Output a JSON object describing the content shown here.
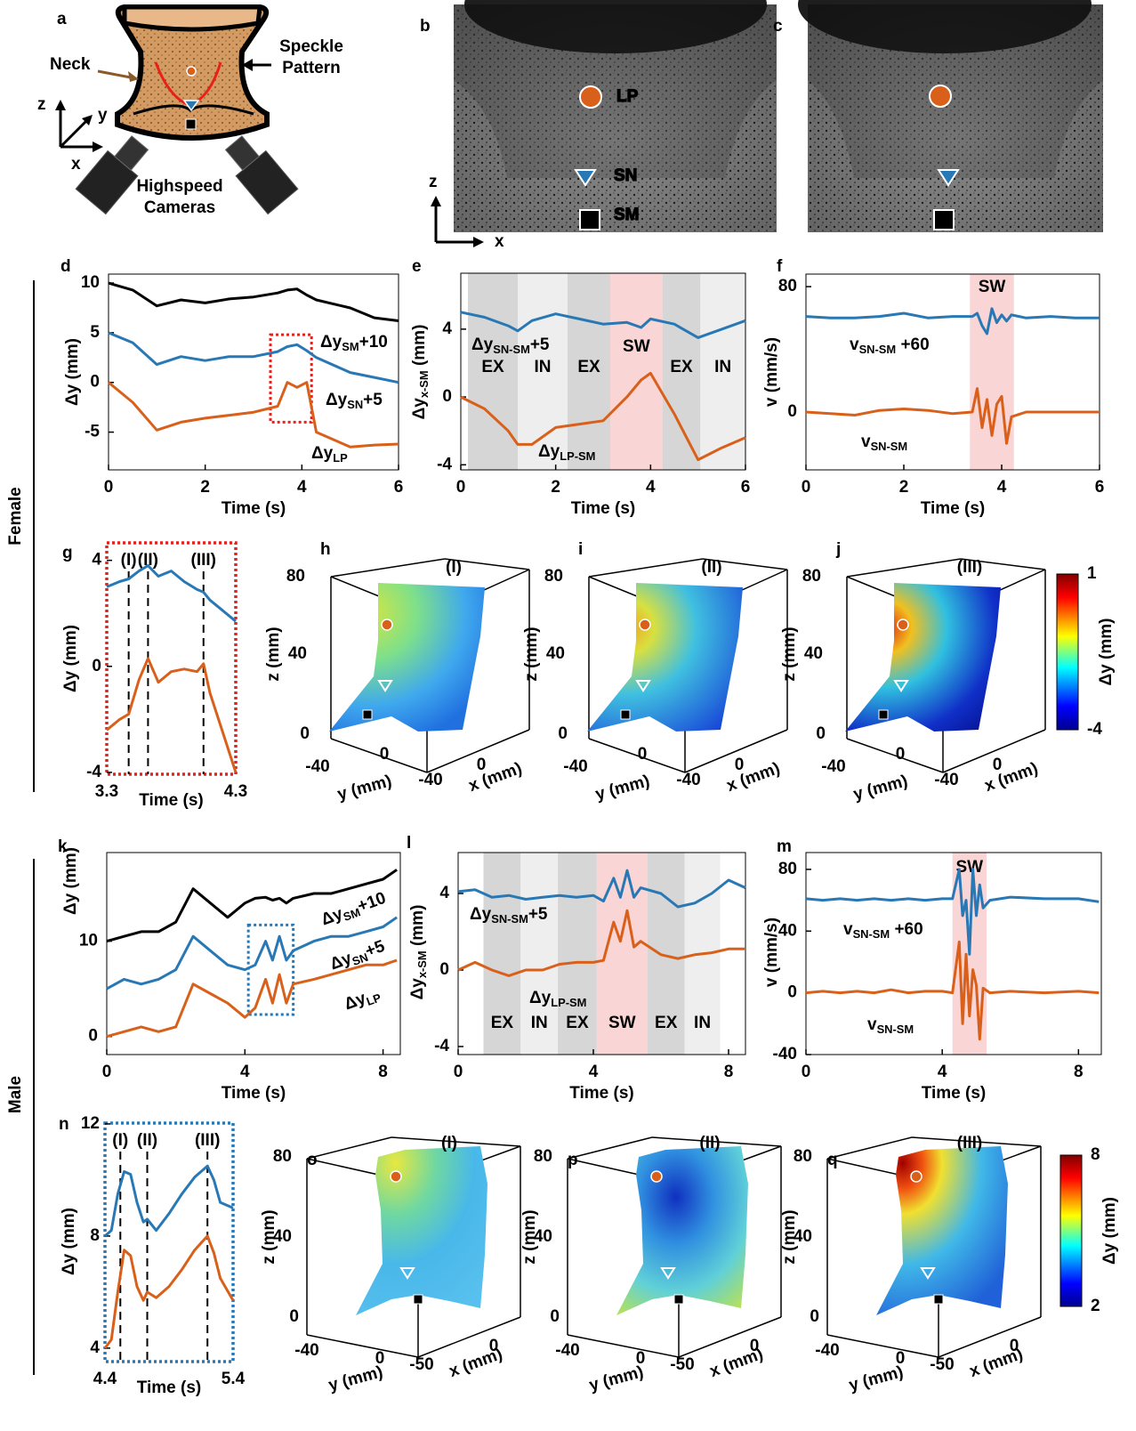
{
  "chart_data": [
    {
      "type": "line",
      "panel": "d",
      "x": [
        0,
        0.5,
        1,
        1.5,
        2,
        2.5,
        3,
        3.5,
        3.7,
        3.9,
        4.1,
        4.3,
        5,
        5.5,
        6
      ],
      "xlim": [
        0,
        6
      ],
      "xticks": [
        0,
        2,
        4,
        6
      ],
      "ylim": [
        -8.8,
        10.9
      ],
      "yticks": [
        -5,
        0,
        5,
        10
      ],
      "xlabel": "Time (s)",
      "ylabel": [
        "Δy (mm)"
      ],
      "series": [
        {
          "name": [
            "Δy",
            "SM",
            "+10"
          ],
          "color": "#000000",
          "values": [
            10,
            9.3,
            7.7,
            8.3,
            8.0,
            8.4,
            8.6,
            9.0,
            9.3,
            9.4,
            8.8,
            8.3,
            7.5,
            6.5,
            6.2
          ]
        },
        {
          "name": [
            "Δy",
            "SN",
            "+5"
          ],
          "color": "#2878b5",
          "values": [
            5,
            4,
            1.8,
            2.6,
            2.2,
            2.6,
            2.6,
            3.1,
            3.6,
            3.8,
            3.2,
            2.5,
            1,
            0.5,
            0
          ]
        },
        {
          "name": [
            "Δy",
            "LP"
          ],
          "color": "#d9601a",
          "values": [
            0,
            -2,
            -4.8,
            -4,
            -3.6,
            -3.3,
            -3,
            -2.4,
            0,
            -0.5,
            0,
            -5,
            -6.5,
            -6.3,
            -6.2
          ]
        }
      ],
      "highlight_box": {
        "x": [
          3.35,
          4.2
        ],
        "y": [
          -4,
          4.8
        ],
        "color": "#e8201c"
      }
    },
    {
      "type": "line",
      "panel": "e",
      "x": [
        0,
        0.5,
        1,
        1.2,
        1.5,
        2,
        2.5,
        3,
        3.5,
        3.8,
        4,
        4.5,
        5,
        5.5,
        6
      ],
      "xlim": [
        0,
        6
      ],
      "xticks": [
        0,
        2,
        4,
        6
      ],
      "ylim": [
        -4.3,
        7.3
      ],
      "yticks": [
        -4,
        0,
        4
      ],
      "xlabel": "Time (s)",
      "ylabel": [
        "Δy",
        "x-SM",
        " (mm)"
      ],
      "bands": [
        {
          "label": "EX",
          "x": [
            0.15,
            1.2
          ],
          "color": "#d6d6d6",
          "label_color": "#000000"
        },
        {
          "label": "IN",
          "x": [
            1.2,
            2.25
          ],
          "color": "#eeeeee",
          "label_color": "#000000"
        },
        {
          "label": "EX",
          "x": [
            2.25,
            3.15
          ],
          "color": "#d6d6d6",
          "label_color": "#000000"
        },
        {
          "label": "SW",
          "x": [
            3.15,
            4.25
          ],
          "color": "#f9d5d5",
          "label_color": "#e8201c"
        },
        {
          "label": "EX",
          "x": [
            4.25,
            5.05
          ],
          "color": "#d6d6d6",
          "label_color": "#000000"
        },
        {
          "label": "IN",
          "x": [
            5.05,
            6
          ],
          "color": "#eeeeee",
          "label_color": "#000000"
        }
      ],
      "series": [
        {
          "name": [
            "Δy",
            "SN-SM",
            "+5"
          ],
          "color": "#2878b5",
          "values": [
            5,
            4.7,
            4.2,
            3.9,
            4.5,
            4.9,
            4.6,
            4.3,
            4.4,
            4.1,
            4.6,
            4.3,
            3.5,
            4.0,
            4.5
          ]
        },
        {
          "name": [
            "Δy",
            "LP-SM"
          ],
          "color": "#d9601a",
          "values": [
            0,
            -0.7,
            -2,
            -2.8,
            -2.8,
            -1.8,
            -1.6,
            -1.4,
            0,
            1.0,
            1.4,
            -1,
            -3.7,
            -3.0,
            -2.4
          ]
        }
      ]
    },
    {
      "type": "line",
      "panel": "f",
      "x": [
        0,
        0.5,
        1,
        1.5,
        2,
        2.5,
        3,
        3.4,
        3.5,
        3.6,
        3.7,
        3.8,
        3.9,
        4,
        4.1,
        4.2,
        4.5,
        5,
        5.5,
        6
      ],
      "xlim": [
        0,
        6
      ],
      "xticks": [
        0,
        2,
        4,
        6
      ],
      "ylim": [
        -36.9,
        88
      ],
      "yticks": [
        0,
        80
      ],
      "xlabel": "Time (s)",
      "ylabel": [
        "v (mm/s)"
      ],
      "bands": [
        {
          "label": "SW",
          "x": [
            3.35,
            4.25
          ],
          "color": "#f9d5d5",
          "label_color": "#e8201c"
        }
      ],
      "series": [
        {
          "name": [
            "v",
            "SN-SM",
            " +60"
          ],
          "color": "#2878b5",
          "values": [
            61,
            60,
            60,
            61,
            63,
            60,
            61,
            61,
            63,
            55,
            50,
            66,
            57,
            62,
            58,
            62,
            60,
            61,
            60,
            60
          ]
        },
        {
          "name": [
            "v",
            "SN-SM"
          ],
          "color": "#d9601a",
          "values": [
            0,
            -1,
            -2,
            1,
            2,
            1,
            -1,
            0,
            15,
            -10,
            8,
            -15,
            5,
            10,
            -20,
            -3,
            0,
            0,
            0,
            0
          ]
        }
      ]
    },
    {
      "type": "line",
      "panel": "g",
      "x": [
        3.3,
        3.35,
        3.4,
        3.47,
        3.55,
        3.62,
        3.7,
        3.8,
        3.9,
        4,
        4.05,
        4.1,
        4.2,
        4.3
      ],
      "xlim": [
        3.3,
        4.3
      ],
      "xticks": [
        3.3,
        4.3
      ],
      "ylim": [
        -4.07,
        4.66
      ],
      "yticks": [
        -4,
        0,
        4
      ],
      "xlabel": "Time (s)",
      "ylabel": [
        "Δy (mm)"
      ],
      "frame": {
        "color": "#e8201c",
        "style": "dotted"
      },
      "markers": [
        {
          "x": 3.47,
          "label": "(I)"
        },
        {
          "x": 3.62,
          "label": "(II)"
        },
        {
          "x": 4.05,
          "label": "(III)"
        }
      ],
      "series": [
        {
          "color": "#2878b5",
          "values": [
            3,
            3.1,
            3.2,
            3.3,
            3.6,
            3.8,
            3.4,
            3.6,
            3.2,
            2.9,
            2.8,
            2.5,
            2.1,
            1.7
          ]
        },
        {
          "color": "#d9601a",
          "values": [
            -2.4,
            -2.2,
            -2,
            -1.8,
            -0.5,
            0.3,
            -0.6,
            -0.2,
            -0.1,
            -0.2,
            0.1,
            -1,
            -2.5,
            -4
          ]
        }
      ]
    },
    {
      "type": "line",
      "panel": "k",
      "x": [
        0,
        0.5,
        1,
        1.5,
        2,
        2.5,
        3,
        3.5,
        4,
        4.3,
        4.6,
        4.8,
        5,
        5.2,
        5.4,
        6,
        6.5,
        7,
        7.5,
        8,
        8.4
      ],
      "xlim": [
        0,
        8.5
      ],
      "xticks": [
        0,
        4,
        8
      ],
      "ylim": [
        -1.9,
        19.3
      ],
      "yticks": [
        0,
        10
      ],
      "xlabel": "Time (s)",
      "ylabel": [
        "Δy (mm)"
      ],
      "series": [
        {
          "name": [
            "Δy",
            "SM",
            "+10"
          ],
          "color": "#000000",
          "values": [
            10,
            10.5,
            11,
            11,
            12,
            15.5,
            14,
            12.5,
            14,
            14.5,
            14.6,
            14.3,
            14.5,
            14,
            14.5,
            15,
            15,
            15.5,
            16,
            16.5,
            17.5
          ]
        },
        {
          "name": [
            "Δy",
            "SN",
            "+5"
          ],
          "color": "#2878b5",
          "values": [
            5,
            6,
            5.5,
            6,
            7,
            10.5,
            9,
            7.5,
            7,
            7.5,
            10,
            8,
            10.5,
            8,
            9,
            10,
            10.5,
            10.5,
            11,
            11.5,
            12.5
          ]
        },
        {
          "name": [
            "Δy",
            "LP"
          ],
          "color": "#d9601a",
          "values": [
            0,
            0.5,
            1,
            0.5,
            1,
            5.5,
            4.5,
            3.5,
            2,
            3,
            6,
            3.5,
            6.5,
            3.5,
            5.5,
            6,
            6.5,
            7,
            7.5,
            7.5,
            8
          ]
        }
      ],
      "highlight_box": {
        "x": [
          4.1,
          5.4
        ],
        "y": [
          2.3,
          11.7
        ],
        "color": "#2878b5"
      }
    },
    {
      "type": "line",
      "panel": "l",
      "x": [
        0,
        0.5,
        1,
        1.5,
        2,
        2.5,
        3,
        3.5,
        4,
        4.3,
        4.6,
        4.8,
        5,
        5.2,
        5.4,
        6,
        6.5,
        7,
        7.5,
        8,
        8.5
      ],
      "xlim": [
        0,
        8.5
      ],
      "xticks": [
        0,
        4,
        8
      ],
      "ylim": [
        -4.42,
        6.14
      ],
      "yticks": [
        -4,
        0,
        4
      ],
      "xlabel": "Time (s)",
      "ylabel": [
        "Δy",
        "x-SM",
        " (mm)"
      ],
      "bands": [
        {
          "label": "EX",
          "x": [
            0.75,
            1.85
          ],
          "color": "#d6d6d6",
          "label_color": "#000000"
        },
        {
          "label": "IN",
          "x": [
            1.85,
            2.95
          ],
          "color": "#eeeeee",
          "label_color": "#000000"
        },
        {
          "label": "EX",
          "x": [
            2.95,
            4.1
          ],
          "color": "#d6d6d6",
          "label_color": "#000000"
        },
        {
          "label": "SW",
          "x": [
            4.1,
            5.6
          ],
          "color": "#f9d5d5",
          "label_color": "#e8201c"
        },
        {
          "label": "EX",
          "x": [
            5.6,
            6.7
          ],
          "color": "#d6d6d6",
          "label_color": "#000000"
        },
        {
          "label": "IN",
          "x": [
            6.7,
            7.75
          ],
          "color": "#eeeeee",
          "label_color": "#000000"
        }
      ],
      "series": [
        {
          "name": [
            "Δy",
            "SN-SM",
            "+5"
          ],
          "color": "#2878b5",
          "values": [
            4.1,
            4.2,
            3.8,
            3.9,
            3.7,
            3.8,
            3.9,
            3.8,
            3.9,
            3.6,
            4.8,
            3.8,
            5.2,
            3.8,
            4.3,
            4.0,
            3.3,
            3.5,
            4.0,
            4.7,
            4.3
          ]
        },
        {
          "name": [
            "Δy",
            "LP-SM"
          ],
          "color": "#d9601a",
          "values": [
            0,
            0.4,
            0,
            -0.3,
            0,
            0,
            0.3,
            0.4,
            0.4,
            0.5,
            2.5,
            1.5,
            3.1,
            1.2,
            1.5,
            0.8,
            0.6,
            0.8,
            0.9,
            1.1,
            1.1
          ]
        }
      ]
    },
    {
      "type": "line",
      "panel": "m",
      "x": [
        0,
        0.5,
        1,
        1.5,
        2,
        2.5,
        3,
        3.5,
        4,
        4.3,
        4.5,
        4.6,
        4.7,
        4.8,
        4.9,
        5,
        5.1,
        5.2,
        5.4,
        6,
        7,
        8,
        8.6
      ],
      "xlim": [
        0,
        8.67
      ],
      "xticks": [
        0,
        4,
        8
      ],
      "ylim": [
        -40,
        90.9
      ],
      "yticks": [
        -40,
        0,
        40,
        80
      ],
      "xlabel": "Time (s)",
      "ylabel": [
        "v (mm/s)"
      ],
      "bands": [
        {
          "label": "SW",
          "x": [
            4.3,
            5.3
          ],
          "color": "#f9d5d5",
          "label_color": "#e8201c"
        }
      ],
      "series": [
        {
          "name": [
            "v",
            "SN-SM",
            " +60"
          ],
          "color": "#2878b5",
          "values": [
            61,
            60,
            61,
            60,
            61,
            60,
            61,
            60,
            61,
            61,
            80,
            50,
            60,
            25,
            80,
            50,
            70,
            55,
            60,
            62,
            61,
            61,
            59
          ]
        },
        {
          "name": [
            "v",
            "SN-SM"
          ],
          "color": "#d9601a",
          "values": [
            0,
            1,
            0,
            1,
            0,
            2,
            0,
            1,
            1,
            0,
            33,
            -20,
            25,
            -15,
            15,
            5,
            -30,
            3,
            0,
            1,
            0,
            1,
            0
          ]
        }
      ]
    },
    {
      "type": "line",
      "panel": "n",
      "x": [
        4.4,
        4.45,
        4.5,
        4.55,
        4.6,
        4.65,
        4.7,
        4.73,
        4.8,
        4.9,
        5,
        5.1,
        5.2,
        5.25,
        5.3,
        5.4
      ],
      "xlim": [
        4.4,
        5.4
      ],
      "xticks": [
        4.4,
        5.4
      ],
      "ylim": [
        3.52,
        12.03
      ],
      "yticks": [
        4,
        8,
        12
      ],
      "xlabel": "Time (s)",
      "ylabel": [
        "Δy (mm)"
      ],
      "frame": {
        "color": "#2878b5",
        "style": "dotted"
      },
      "markers": [
        {
          "x": 4.52,
          "label": "(I)"
        },
        {
          "x": 4.73,
          "label": "(II)"
        },
        {
          "x": 5.2,
          "label": "(III)"
        }
      ],
      "series": [
        {
          "color": "#2878b5",
          "values": [
            8,
            8.2,
            9.5,
            10.3,
            10.2,
            9.2,
            8.5,
            8.6,
            8.2,
            8.8,
            9.5,
            10.1,
            10.5,
            10,
            9.2,
            9
          ]
        },
        {
          "color": "#d9601a",
          "values": [
            4,
            4.3,
            6,
            7.5,
            7.3,
            6.2,
            5.7,
            6,
            5.8,
            6.2,
            6.8,
            7.5,
            8,
            7.4,
            6.5,
            5.7
          ]
        }
      ]
    }
  ],
  "panels": {
    "a": {
      "letter": "a",
      "neck": "Neck",
      "speckle": [
        "Speckle",
        "Pattern"
      ],
      "cameras": [
        "Highspeed",
        "Cameras"
      ],
      "z": "z",
      "y": "y",
      "x": "x"
    },
    "b": {
      "letter": "b",
      "lp": "LP",
      "sn": "SN",
      "sm": "SM",
      "z": "z",
      "x": "x"
    },
    "c": {
      "letter": "c"
    },
    "h": {
      "letter": "h",
      "stage": "(I)",
      "z_label": "z (mm)",
      "z_ticks": [
        80,
        40,
        0
      ],
      "y_label": "y (mm)",
      "y_ticks": [
        -40,
        0
      ],
      "x_label": "x (mm)",
      "x_ticks": [
        -40,
        0
      ]
    },
    "i": {
      "letter": "i",
      "stage": "(II)",
      "z_label": "z (mm)",
      "z_ticks": [
        80,
        40,
        0
      ],
      "y_label": "y (mm)",
      "y_ticks": [
        -40,
        0
      ],
      "x_label": "x (mm)",
      "x_ticks": [
        -40,
        0
      ]
    },
    "j": {
      "letter": "j",
      "stage": "(III)",
      "z_label": "z (mm)",
      "z_ticks": [
        80,
        40,
        0
      ],
      "y_label": "y (mm)",
      "y_ticks": [
        -40,
        0
      ],
      "x_label": "x (mm)",
      "x_ticks": [
        -40,
        0
      ]
    },
    "o": {
      "letter": "o",
      "stage": "(I)",
      "z_label": "z (mm)",
      "z_ticks": [
        80,
        40,
        0
      ],
      "y_label": "y (mm)",
      "y_ticks": [
        -40,
        0
      ],
      "x_label": "x (mm)",
      "x_ticks": [
        -50,
        0
      ]
    },
    "p": {
      "letter": "p",
      "stage": "(II)",
      "z_label": "z (mm)",
      "z_ticks": [
        80,
        40,
        0
      ],
      "y_label": "y (mm)",
      "y_ticks": [
        -40,
        0
      ],
      "x_label": "x (mm)",
      "x_ticks": [
        -50,
        0
      ]
    },
    "q": {
      "letter": "q",
      "stage": "(III)",
      "z_label": "z (mm)",
      "z_ticks": [
        80,
        40,
        0
      ],
      "y_label": "y (mm)",
      "y_ticks": [
        -40,
        0
      ],
      "x_label": "x (mm)",
      "x_ticks": [
        -50,
        0
      ]
    },
    "colorbar_female": {
      "label": "Δy (mm)",
      "range": [
        -4,
        1
      ]
    },
    "colorbar_male": {
      "label": "Δy (mm)",
      "range": [
        2,
        8
      ]
    }
  },
  "groups": {
    "female": "Female",
    "male": "Male"
  }
}
